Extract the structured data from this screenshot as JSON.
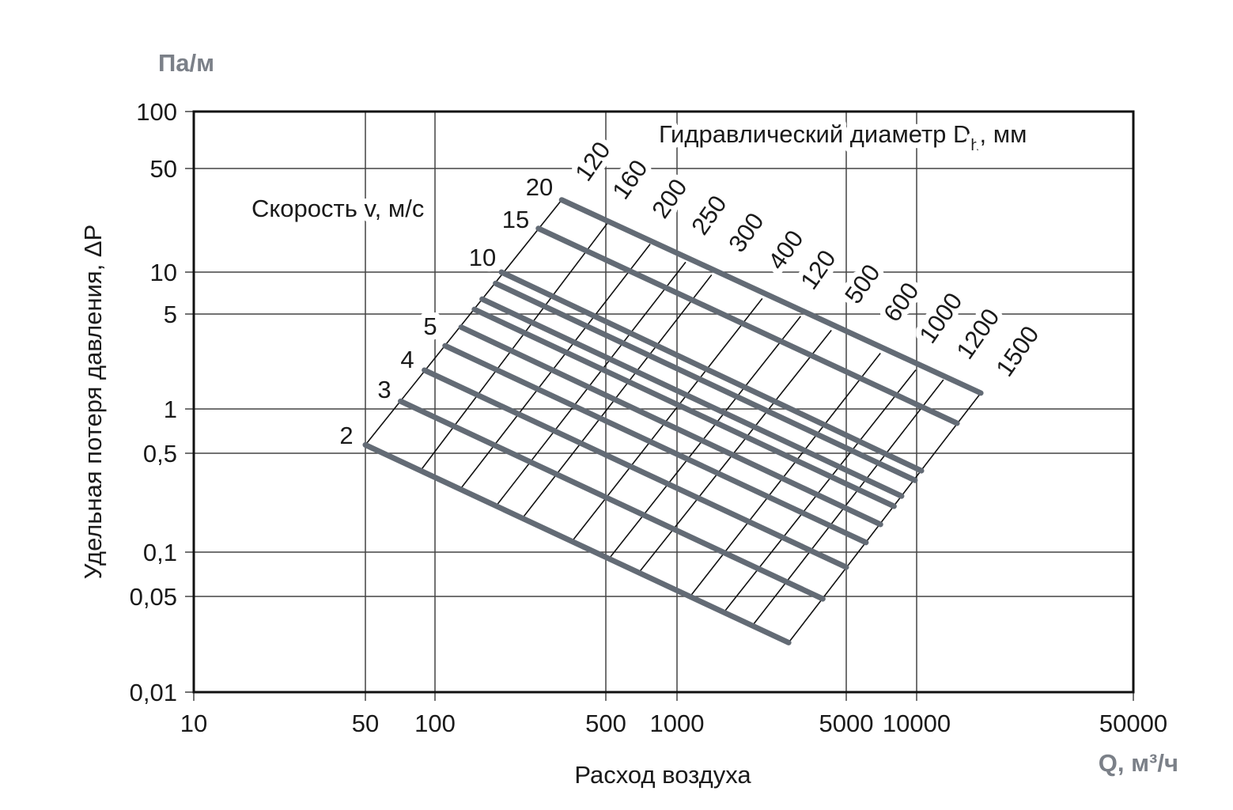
{
  "chart_data": {
    "type": "line",
    "x_scale": "log",
    "y_scale": "log",
    "xlim": [
      10,
      50000
    ],
    "ylim": [
      0.01,
      100
    ],
    "grid": true,
    "x_unit": "Q, м³/ч",
    "y_unit": "Па/м",
    "xlabel": "Расход воздуха",
    "ylabel": "Удельная потеря давления, ΔP",
    "x_ticks": [
      10,
      50,
      100,
      500,
      1000,
      5000,
      10000,
      50000
    ],
    "x_tick_labels": [
      "10",
      "50",
      "100",
      "500",
      "1000",
      "5000",
      "10000",
      "50000"
    ],
    "y_ticks": [
      0.01,
      0.05,
      0.1,
      0.5,
      1,
      5,
      10,
      50,
      100
    ],
    "y_tick_labels": [
      "0,01",
      "0,05",
      "0,1",
      "0,5",
      "1",
      "5",
      "10",
      "50",
      "100"
    ],
    "velocity_title": "Скорость v, м/с",
    "diameter_title": "Гидравлический диаметр D",
    "diameter_title_sub": "h",
    "diameter_title_tail": ", мм",
    "line_color": "#636b75",
    "velocity_series": [
      {
        "v": 2,
        "label": "2",
        "points": [
          [
            50,
            0.57
          ],
          [
            2890,
            0.023
          ]
        ]
      },
      {
        "v": 3,
        "label": "3",
        "points": [
          [
            71,
            1.14
          ],
          [
            4000,
            0.048
          ]
        ]
      },
      {
        "v": 4,
        "label": "4",
        "points": [
          [
            90,
            1.93
          ],
          [
            5000,
            0.079
          ]
        ]
      },
      {
        "v": 5,
        "label": "5",
        "points": [
          [
            110,
            2.92
          ],
          [
            6070,
            0.117
          ]
        ]
      },
      {
        "v": 6,
        "label": "",
        "points": [
          [
            128,
            4.0
          ],
          [
            7000,
            0.157
          ]
        ]
      },
      {
        "v": 7,
        "label": "",
        "points": [
          [
            145,
            5.4
          ],
          [
            8000,
            0.211
          ]
        ]
      },
      {
        "v": 8,
        "label": "",
        "points": [
          [
            156,
            6.4
          ],
          [
            8620,
            0.249
          ]
        ]
      },
      {
        "v": 9,
        "label": "",
        "points": [
          [
            177,
            8.3
          ],
          [
            9840,
            0.322
          ]
        ]
      },
      {
        "v": 10,
        "label": "10",
        "points": [
          [
            187,
            10.0
          ],
          [
            10360,
            0.376
          ]
        ]
      },
      {
        "v": 15,
        "label": "15",
        "points": [
          [
            265,
            19.7
          ],
          [
            13500,
            0.8
          ]
        ]
      },
      {
        "v": 20,
        "label": "20",
        "points": [
          [
            330,
            30.7
          ],
          [
            16100,
            1.31
          ]
        ]
      }
    ],
    "diameter_lines": [
      {
        "label": "120",
        "q_at_v2": 50,
        "q_at_v20": 330
      },
      {
        "label": "160",
        "q_at_v2": 86,
        "q_at_v20": 510
      },
      {
        "label": "200",
        "q_at_v2": 126,
        "q_at_v20": 770
      },
      {
        "label": "250",
        "q_at_v2": 177,
        "q_at_v20": 1086
      },
      {
        "label": "300",
        "q_at_v2": 227,
        "q_at_v20": 1390
      },
      {
        "label": "400",
        "q_at_v2": 363,
        "q_at_v20": 2250
      },
      {
        "label": "120",
        "q_at_v2": 515,
        "q_at_v20": 3240
      },
      {
        "label": "500",
        "q_at_v2": 686,
        "q_at_v20": 4340
      },
      {
        "label": "600",
        "q_at_v2": 1120,
        "q_at_v20": 7000
      },
      {
        "label": "1000",
        "q_at_v2": 1550,
        "q_at_v20": 9920
      },
      {
        "label": "1200",
        "q_at_v2": 2040,
        "q_at_v20": 12200
      },
      {
        "label": "1500",
        "q_at_v2": 2890,
        "q_at_v20": 16100
      }
    ]
  }
}
